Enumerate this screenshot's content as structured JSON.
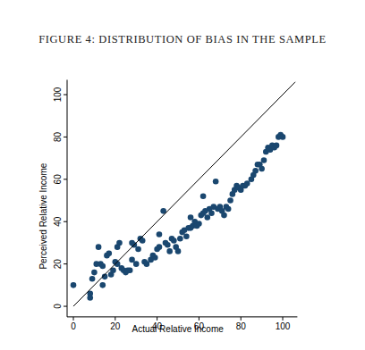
{
  "chart_data": {
    "type": "scatter",
    "title": "FIGURE 4: DISTRIBUTION OF BIAS IN THE SAMPLE",
    "x_label": "Actual Relative Income",
    "y_label": "Perceived Relative Income",
    "xlim": [
      -3,
      107
    ],
    "ylim": [
      -5,
      107
    ],
    "xticks": [
      0,
      20,
      40,
      60,
      80,
      100
    ],
    "yticks": [
      0,
      20,
      40,
      60,
      80,
      100
    ],
    "grid": false,
    "series": [
      {
        "type": "scatter",
        "marker": "circle",
        "color": "#1a476f",
        "x": [
          0,
          8,
          8,
          9,
          10,
          11,
          12,
          13,
          14,
          14,
          15,
          16,
          17,
          18,
          19,
          20,
          21,
          21,
          22,
          23,
          24,
          25,
          26,
          27,
          28,
          28,
          29,
          30,
          31,
          32,
          33,
          34,
          35,
          37,
          38,
          39,
          40,
          41,
          41,
          43,
          44,
          45,
          46,
          47,
          48,
          49,
          50,
          51,
          52,
          53,
          54,
          55,
          56,
          56,
          57,
          58,
          59,
          60,
          61,
          62,
          62,
          63,
          64,
          65,
          66,
          67,
          68,
          69,
          70,
          71,
          72,
          73,
          74,
          75,
          76,
          77,
          78,
          79,
          80,
          81,
          82,
          83,
          85,
          86,
          87,
          88,
          89,
          90,
          91,
          92,
          93,
          94,
          95,
          96,
          97,
          98,
          99,
          100
        ],
        "values": [
          10,
          6,
          4,
          13,
          16,
          20,
          28,
          20,
          19,
          10,
          14,
          24,
          25,
          15,
          17,
          21,
          20,
          28,
          30,
          18,
          17,
          16,
          17,
          17,
          22,
          30,
          29,
          20,
          27,
          32,
          31,
          21,
          20,
          22,
          24,
          23,
          27,
          28,
          34,
          45,
          30,
          29,
          26,
          32,
          31,
          28,
          26,
          32,
          35,
          36,
          33,
          37,
          37,
          42,
          38,
          40,
          38,
          39,
          43,
          44,
          52,
          45,
          42,
          46,
          44,
          47,
          59,
          46,
          47,
          45,
          43,
          47,
          46,
          50,
          53,
          55,
          57,
          56,
          55,
          57,
          57,
          58,
          60,
          62,
          64,
          67,
          67,
          65,
          69,
          73,
          75,
          74,
          76,
          75,
          76,
          80,
          81,
          80
        ]
      },
      {
        "type": "line",
        "line_style": "solid",
        "color": "#000000",
        "x": [
          0,
          106
        ],
        "values": [
          0,
          106
        ]
      }
    ]
  }
}
